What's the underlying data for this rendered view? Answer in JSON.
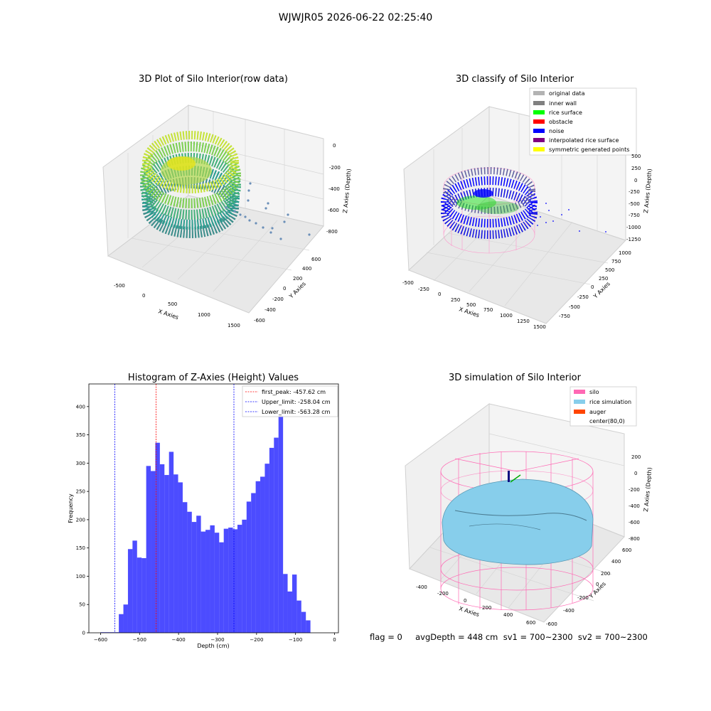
{
  "suptitle": "WJWJR05 2026-06-22 02:25:40",
  "panels": {
    "p1": {
      "title": "3D Plot of Silo Interior(row data)",
      "xlabel": "X Axies",
      "ylabel": "Y Axies",
      "zlabel": "Z Axies (Depth)",
      "xticks": [
        "-500",
        "0",
        "500",
        "1000",
        "1500"
      ],
      "yticks": [
        "-600",
        "-400",
        "-200",
        "0",
        "200",
        "400",
        "600"
      ],
      "zticks": [
        "0",
        "-200",
        "-400",
        "-600",
        "-800"
      ]
    },
    "p2": {
      "title": "3D classify of Silo Interior",
      "xlabel": "X Axies",
      "ylabel": "Y Axies",
      "zlabel": "Z Axies (Depth)",
      "xticks": [
        "-500",
        "-250",
        "0",
        "250",
        "500",
        "750",
        "1000",
        "1250",
        "1500"
      ],
      "yticks": [
        "-750",
        "-500",
        "-250",
        "0",
        "250",
        "500",
        "750",
        "1000"
      ],
      "zticks": [
        "500",
        "250",
        "0",
        "-250",
        "-500",
        "-750",
        "-1000",
        "-1250"
      ],
      "legend": [
        {
          "label": "original data",
          "color": "#b3b3b3"
        },
        {
          "label": "inner wall",
          "color": "#808080"
        },
        {
          "label": "rice surface",
          "color": "#00ff00"
        },
        {
          "label": "obstacle",
          "color": "#ff0000"
        },
        {
          "label": "noise",
          "color": "#0000ff"
        },
        {
          "label": "interpolated rice surface",
          "color": "#800080"
        },
        {
          "label": "symmetric generated points",
          "color": "#ffff00"
        }
      ]
    },
    "p4": {
      "title": "3D simulation of Silo Interior",
      "xlabel": "X Axies",
      "ylabel": "Y Axies",
      "zlabel": "Z Axies (Depth)",
      "xticks": [
        "-400",
        "-200",
        "0",
        "200",
        "400",
        "600"
      ],
      "yticks": [
        "-600",
        "-400",
        "-200",
        "0",
        "200",
        "400",
        "600"
      ],
      "zticks": [
        "200",
        "0",
        "-200",
        "-400",
        "-600",
        "-800"
      ],
      "legend": [
        {
          "label": "silo",
          "color": "#ff69b4"
        },
        {
          "label": "rice simulation",
          "color": "#87ceeb"
        },
        {
          "label": "auger",
          "color": "#ff4500"
        },
        {
          "label": "center(80,0)",
          "color": "none"
        }
      ]
    }
  },
  "chart_data": [
    {
      "type": "histogram",
      "title": "Histogram of Z-Axies (Height) Values",
      "xlabel": "Depth (cm)",
      "ylabel": "Frequency",
      "xlim": [
        -630,
        10
      ],
      "ylim": [
        0,
        440
      ],
      "xticks": [
        -600,
        -500,
        -400,
        -300,
        -200,
        -100,
        0
      ],
      "yticks": [
        0,
        50,
        100,
        150,
        200,
        250,
        300,
        350,
        400
      ],
      "bar_color": "#0000ff",
      "bin_start": -600,
      "bin_width": 11.7,
      "values": [
        1,
        1,
        1,
        1,
        33,
        50,
        148,
        163,
        133,
        132,
        295,
        286,
        336,
        298,
        279,
        320,
        280,
        266,
        231,
        214,
        196,
        207,
        179,
        182,
        190,
        177,
        160,
        184,
        186,
        183,
        191,
        200,
        232,
        247,
        268,
        276,
        299,
        327,
        345,
        420,
        104,
        73,
        103,
        57,
        37,
        22
      ],
      "reference_lines": [
        {
          "label": "first_peak: -457.62 cm",
          "value": -457.62,
          "color": "#ff0000"
        },
        {
          "label": "Upper_limit: -258.04 cm",
          "value": -258.04,
          "color": "#0000ff"
        },
        {
          "label": "Lower_limit: -563.28 cm",
          "value": -563.28,
          "color": "#0000ff"
        }
      ],
      "legend_position": "upper right"
    }
  ],
  "stats_text": "flag = 0     avgDepth = 448 cm  sv1 = 700~2300  sv2 = 700~2300"
}
